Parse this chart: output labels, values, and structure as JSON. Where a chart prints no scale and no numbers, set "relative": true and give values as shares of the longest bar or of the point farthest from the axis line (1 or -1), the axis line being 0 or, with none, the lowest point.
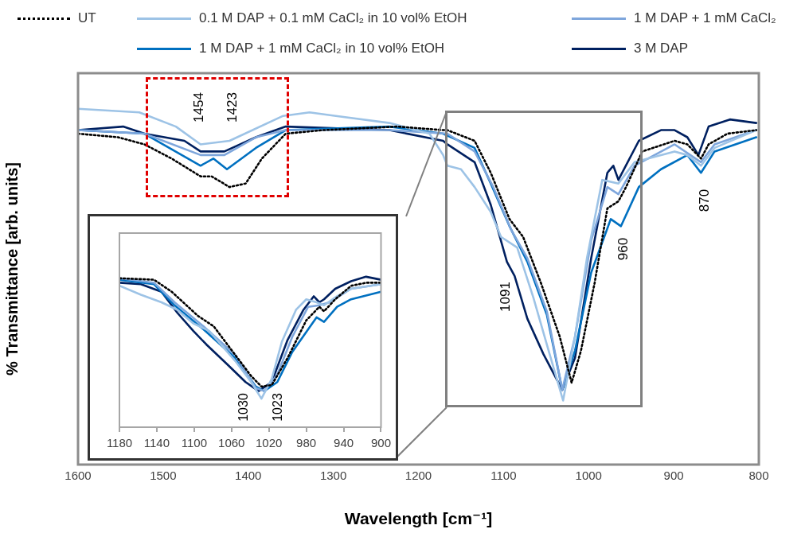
{
  "chart_data": [
    {
      "type": "line",
      "xlabel": "Wavelength [cm⁻¹]",
      "ylabel": "% Transmittance [arb. units]",
      "relative": true,
      "xlim": [
        1600,
        800
      ],
      "xticks": [
        1600,
        1500,
        1400,
        1300,
        1200,
        1100,
        1000,
        900,
        800
      ],
      "legend": "top",
      "marker": "none",
      "annotations": [
        "1454",
        "1423",
        "1091",
        "960",
        "870"
      ],
      "series": [
        {
          "name": "UT",
          "color": "#000000",
          "line_style": "dotted",
          "x": [
            1600,
            1553,
            1522,
            1490,
            1456,
            1443,
            1422,
            1403,
            1384,
            1356,
            1312,
            1225,
            1171,
            1166,
            1134,
            1115,
            1093,
            1077,
            1056,
            1034,
            1020,
            1009,
            993,
            978,
            965,
            956,
            937,
            899,
            884,
            868,
            859,
            837,
            803
          ],
          "values": [
            0.93,
            0.92,
            0.9,
            0.86,
            0.81,
            0.81,
            0.78,
            0.79,
            0.86,
            0.93,
            0.94,
            0.95,
            0.94,
            0.94,
            0.91,
            0.82,
            0.69,
            0.64,
            0.51,
            0.36,
            0.23,
            0.32,
            0.51,
            0.72,
            0.74,
            0.78,
            0.88,
            0.91,
            0.9,
            0.86,
            0.9,
            0.93,
            0.94
          ]
        },
        {
          "name": "0.1 M DAP + 0.1 mM CaCl₂ in 10 vol% EtOH",
          "color": "#9dc3e6",
          "line_style": "solid",
          "x": [
            1600,
            1528,
            1485,
            1456,
            1422,
            1359,
            1328,
            1297,
            1234,
            1187,
            1171,
            1166,
            1150,
            1134,
            1115,
            1103,
            1084,
            1065,
            1047,
            1030,
            1016,
            1002,
            984,
            965,
            946,
            899,
            884,
            868,
            852,
            803
          ],
          "values": [
            1.0,
            0.99,
            0.95,
            0.9,
            0.91,
            0.98,
            0.99,
            0.98,
            0.96,
            0.93,
            0.87,
            0.84,
            0.83,
            0.78,
            0.71,
            0.64,
            0.61,
            0.47,
            0.32,
            0.18,
            0.36,
            0.58,
            0.8,
            0.79,
            0.85,
            0.88,
            0.87,
            0.84,
            0.89,
            0.94
          ]
        },
        {
          "name": "1 M DAP + 1 mM CaCl₂",
          "color": "#7ea6dc",
          "line_style": "solid",
          "x": [
            1600,
            1522,
            1456,
            1428,
            1391,
            1356,
            1234,
            1166,
            1134,
            1112,
            1091,
            1072,
            1049,
            1031,
            1016,
            997,
            978,
            965,
            946,
            899,
            868,
            852,
            803
          ],
          "values": [
            0.94,
            0.93,
            0.87,
            0.87,
            0.92,
            0.94,
            0.94,
            0.93,
            0.88,
            0.78,
            0.66,
            0.58,
            0.43,
            0.21,
            0.36,
            0.63,
            0.78,
            0.76,
            0.84,
            0.9,
            0.85,
            0.9,
            0.94
          ]
        },
        {
          "name": "1 M DAP + 1 mM CaCl₂ in 10 vol% EtOH",
          "color": "#0070c0",
          "line_style": "solid",
          "x": [
            1600,
            1522,
            1456,
            1441,
            1425,
            1391,
            1356,
            1234,
            1171,
            1134,
            1115,
            1093,
            1072,
            1049,
            1031,
            1016,
            997,
            974,
            962,
            941,
            915,
            884,
            868,
            852,
            803
          ],
          "values": [
            0.94,
            0.93,
            0.84,
            0.86,
            0.83,
            0.89,
            0.94,
            0.95,
            0.93,
            0.89,
            0.79,
            0.67,
            0.57,
            0.42,
            0.21,
            0.32,
            0.54,
            0.69,
            0.67,
            0.78,
            0.83,
            0.87,
            0.82,
            0.88,
            0.92
          ]
        },
        {
          "name": "3 M DAP",
          "color": "#002060",
          "line_style": "solid",
          "x": [
            1600,
            1547,
            1522,
            1475,
            1456,
            1428,
            1391,
            1356,
            1234,
            1171,
            1166,
            1134,
            1115,
            1096,
            1087,
            1072,
            1053,
            1031,
            1016,
            997,
            978,
            971,
            965,
            941,
            915,
            899,
            884,
            871,
            859,
            834,
            803
          ],
          "values": [
            0.94,
            0.95,
            0.93,
            0.91,
            0.88,
            0.88,
            0.92,
            0.95,
            0.94,
            0.91,
            0.9,
            0.85,
            0.73,
            0.57,
            0.53,
            0.41,
            0.31,
            0.21,
            0.3,
            0.58,
            0.82,
            0.84,
            0.8,
            0.91,
            0.94,
            0.94,
            0.92,
            0.87,
            0.95,
            0.97,
            0.96
          ]
        }
      ]
    },
    {
      "type": "line",
      "relative": true,
      "xlim": [
        1180,
        900
      ],
      "xticks": [
        1180,
        1140,
        1100,
        1060,
        1020,
        980,
        940,
        900
      ],
      "marker": "none",
      "annotations": [
        "1030",
        "1023"
      ],
      "series": [
        {
          "color": "#000000",
          "line_style": "dotted",
          "x": [
            1180,
            1143,
            1124,
            1096,
            1079,
            1056,
            1039,
            1028,
            1017,
            1000,
            980,
            966,
            961,
            949,
            932,
            916,
            900
          ],
          "values": [
            0.99,
            0.98,
            0.9,
            0.74,
            0.67,
            0.48,
            0.34,
            0.27,
            0.28,
            0.46,
            0.71,
            0.8,
            0.77,
            0.85,
            0.94,
            0.96,
            0.96
          ]
        },
        {
          "color": "#9dc3e6",
          "line_style": "solid",
          "x": [
            1180,
            1157,
            1135,
            1118,
            1101,
            1084,
            1056,
            1039,
            1028,
            1017,
            1006,
            991,
            980,
            969,
            961,
            947,
            932,
            900
          ],
          "values": [
            0.94,
            0.88,
            0.83,
            0.78,
            0.69,
            0.64,
            0.44,
            0.3,
            0.19,
            0.32,
            0.57,
            0.78,
            0.85,
            0.83,
            0.81,
            0.87,
            0.92,
            0.95
          ]
        },
        {
          "color": "#7ea6dc",
          "line_style": "solid",
          "x": [
            1180,
            1143,
            1121,
            1090,
            1056,
            1034,
            1025,
            1011,
            995,
            978,
            966,
            955,
            932,
            900
          ],
          "values": [
            0.99,
            0.96,
            0.83,
            0.67,
            0.48,
            0.26,
            0.24,
            0.35,
            0.6,
            0.8,
            0.81,
            0.83,
            0.92,
            0.95
          ]
        },
        {
          "color": "#0070c0",
          "line_style": "solid",
          "x": [
            1180,
            1143,
            1121,
            1090,
            1056,
            1034,
            1025,
            1011,
            995,
            978,
            969,
            961,
            947,
            932,
            900
          ],
          "values": [
            0.98,
            0.95,
            0.81,
            0.65,
            0.46,
            0.27,
            0.24,
            0.3,
            0.5,
            0.65,
            0.73,
            0.7,
            0.8,
            0.85,
            0.9
          ]
        },
        {
          "color": "#002060",
          "line_style": "solid",
          "x": [
            1180,
            1157,
            1135,
            1118,
            1101,
            1087,
            1065,
            1045,
            1031,
            1017,
            1000,
            983,
            972,
            966,
            961,
            949,
            932,
            916,
            900
          ],
          "values": [
            0.96,
            0.95,
            0.9,
            0.76,
            0.64,
            0.55,
            0.42,
            0.3,
            0.24,
            0.3,
            0.58,
            0.78,
            0.87,
            0.83,
            0.85,
            0.92,
            0.97,
            1.0,
            0.98
          ]
        }
      ]
    }
  ]
}
